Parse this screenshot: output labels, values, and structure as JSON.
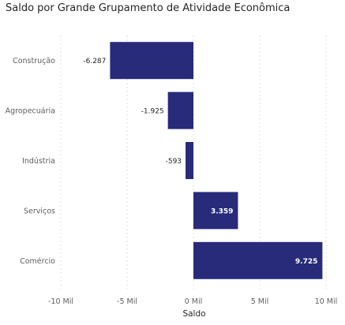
{
  "colors": {
    "bar": "#272b7a",
    "grid": "#e1dfdd",
    "text": "#252423",
    "muted": "#605e5c"
  },
  "chart_data": {
    "type": "bar",
    "orientation": "horizontal",
    "title": "Saldo por Grande Grupamento de Atividade Econômica",
    "xlabel": "Saldo",
    "ylabel": "",
    "categories": [
      "Construção",
      "Agropecuária",
      "Indústria",
      "Serviços",
      "Comércio"
    ],
    "values": [
      -6287,
      -1925,
      -593,
      3359,
      9725
    ],
    "data_labels": [
      "-6.287",
      "-1.925",
      "-593",
      "3.359",
      "9.725"
    ],
    "xlim": [
      -10000,
      10000
    ],
    "xticks": [
      -10000,
      -5000,
      0,
      5000,
      10000
    ],
    "xtick_labels": [
      "-10 Mil",
      "-5 Mil",
      "0 Mil",
      "5 Mil",
      "10 Mil"
    ],
    "grid": true,
    "legend": "none"
  }
}
